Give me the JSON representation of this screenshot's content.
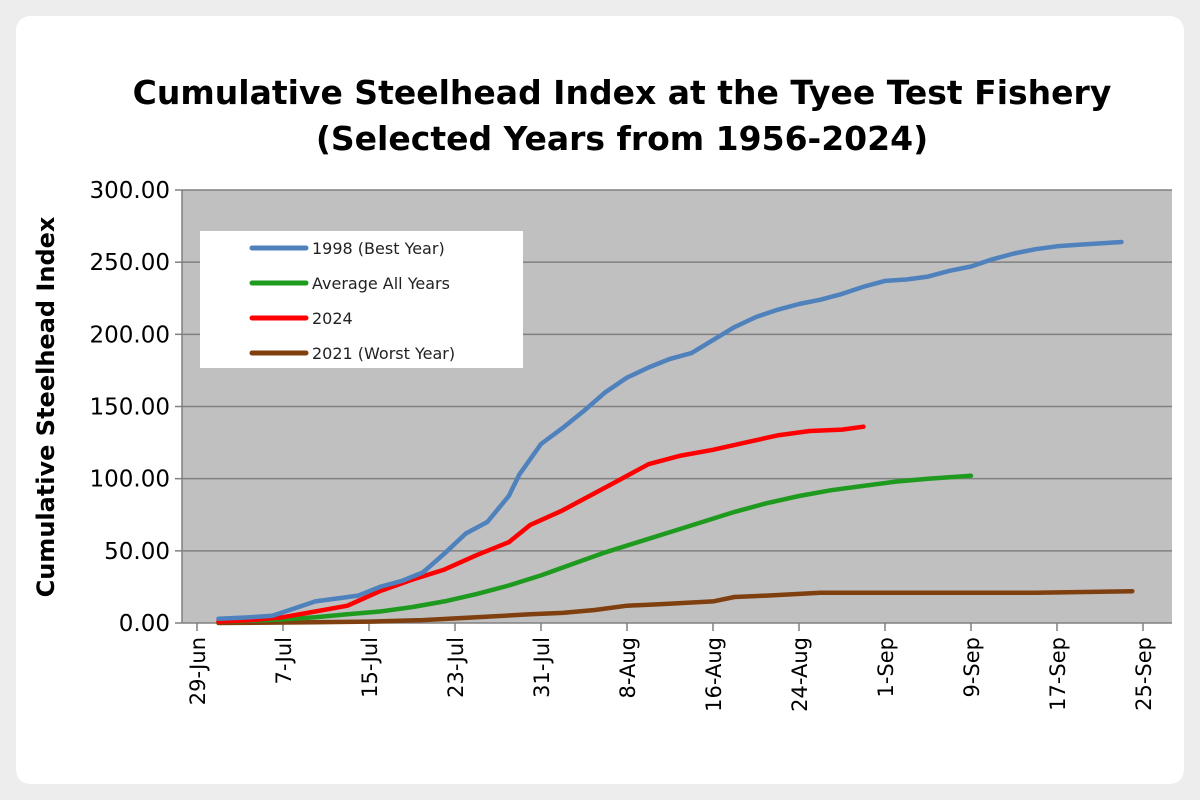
{
  "chart_data": {
    "type": "line",
    "title": "Cumulative Steelhead Index at the Tyee Test Fishery",
    "subtitle": "(Selected Years from 1956-2024)",
    "ylabel": "Cumulative Steelhead Index",
    "xlabel": "",
    "ylim": [
      0,
      300
    ],
    "yticks": [
      "0.00",
      "50.00",
      "100.00",
      "150.00",
      "200.00",
      "250.00",
      "300.00"
    ],
    "x_tick_labels": [
      "29-Jun",
      "7-Jul",
      "15-Jul",
      "23-Jul",
      "31-Jul",
      "8-Aug",
      "16-Aug",
      "24-Aug",
      "1-Sep",
      "9-Sep",
      "17-Sep",
      "25-Sep"
    ],
    "x_tick_dates": [
      "2024-06-29",
      "2024-07-07",
      "2024-07-15",
      "2024-07-23",
      "2024-07-31",
      "2024-08-08",
      "2024-08-16",
      "2024-08-24",
      "2024-09-01",
      "2024-09-09",
      "2024-09-17",
      "2024-09-25"
    ],
    "grid": true,
    "legend_position": "top-left",
    "plot_background": "#c0c0c0",
    "series": [
      {
        "name": "1998 (Best Year)",
        "color": "#4f81bd",
        "x": [
          "2024-07-01",
          "2024-07-04",
          "2024-07-06",
          "2024-07-08",
          "2024-07-10",
          "2024-07-12",
          "2024-07-14",
          "2024-07-16",
          "2024-07-18",
          "2024-07-20",
          "2024-07-22",
          "2024-07-24",
          "2024-07-26",
          "2024-07-28",
          "2024-07-29",
          "2024-07-31",
          "2024-08-02",
          "2024-08-04",
          "2024-08-06",
          "2024-08-08",
          "2024-08-10",
          "2024-08-12",
          "2024-08-14",
          "2024-08-16",
          "2024-08-18",
          "2024-08-20",
          "2024-08-22",
          "2024-08-24",
          "2024-08-26",
          "2024-08-28",
          "2024-08-30",
          "2024-09-01",
          "2024-09-03",
          "2024-09-05",
          "2024-09-07",
          "2024-09-09",
          "2024-09-11",
          "2024-09-13",
          "2024-09-15",
          "2024-09-17",
          "2024-09-19",
          "2024-09-21",
          "2024-09-23"
        ],
        "y": [
          3,
          4,
          5,
          10,
          15,
          17,
          19,
          25,
          29,
          35,
          48,
          62,
          70,
          88,
          103,
          124,
          135,
          147,
          160,
          170,
          177,
          183,
          187,
          196,
          205,
          212,
          217,
          221,
          224,
          228,
          233,
          237,
          238,
          240,
          244,
          247,
          252,
          256,
          259,
          261,
          262,
          263,
          264
        ]
      },
      {
        "name": "Average All Years",
        "color": "#1e9a1e",
        "x": [
          "2024-07-01",
          "2024-07-04",
          "2024-07-07",
          "2024-07-10",
          "2024-07-13",
          "2024-07-16",
          "2024-07-19",
          "2024-07-22",
          "2024-07-25",
          "2024-07-28",
          "2024-07-31",
          "2024-08-03",
          "2024-08-06",
          "2024-08-09",
          "2024-08-12",
          "2024-08-15",
          "2024-08-18",
          "2024-08-21",
          "2024-08-24",
          "2024-08-27",
          "2024-08-30",
          "2024-09-02",
          "2024-09-05",
          "2024-09-09"
        ],
        "y": [
          1,
          1.5,
          2.5,
          4,
          6,
          8,
          11,
          15,
          20,
          26,
          33,
          41,
          49,
          56,
          63,
          70,
          77,
          83,
          88,
          92,
          95,
          98,
          100,
          102
        ]
      },
      {
        "name": "2024",
        "color": "#ff0000",
        "x": [
          "2024-07-01",
          "2024-07-04",
          "2024-07-07",
          "2024-07-10",
          "2024-07-13",
          "2024-07-16",
          "2024-07-19",
          "2024-07-22",
          "2024-07-25",
          "2024-07-28",
          "2024-07-30",
          "2024-08-02",
          "2024-08-05",
          "2024-08-07",
          "2024-08-10",
          "2024-08-13",
          "2024-08-16",
          "2024-08-19",
          "2024-08-22",
          "2024-08-25",
          "2024-08-28",
          "2024-08-30"
        ],
        "y": [
          1,
          2,
          4,
          8,
          12,
          22,
          30,
          37,
          47,
          56,
          68,
          78,
          90,
          98,
          110,
          116,
          120,
          125,
          130,
          133,
          134,
          136
        ]
      },
      {
        "name": "2021 (Worst Year)",
        "color": "#7f3f0f",
        "x": [
          "2024-07-01",
          "2024-07-10",
          "2024-07-15",
          "2024-07-20",
          "2024-07-25",
          "2024-07-30",
          "2024-08-02",
          "2024-08-05",
          "2024-08-08",
          "2024-08-11",
          "2024-08-16",
          "2024-08-18",
          "2024-08-21",
          "2024-08-26",
          "2024-09-05",
          "2024-09-15",
          "2024-09-24"
        ],
        "y": [
          0,
          0.5,
          1,
          2,
          4,
          6,
          7,
          9,
          12,
          13,
          15,
          18,
          19,
          21,
          21,
          21,
          22
        ]
      }
    ]
  }
}
